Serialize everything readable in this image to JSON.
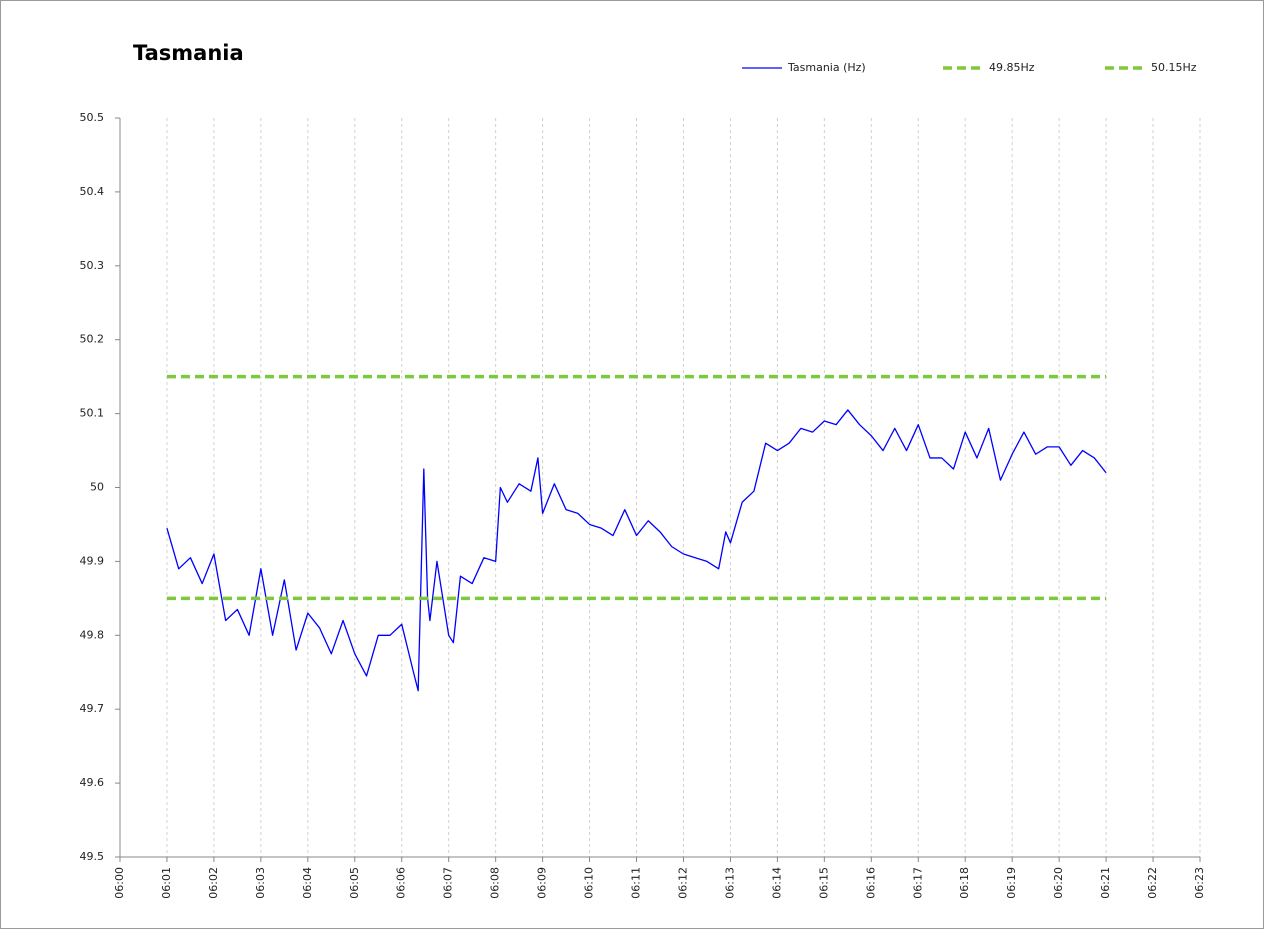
{
  "chart_data": {
    "type": "line",
    "title": "Tasmania",
    "xlim": [
      360,
      383
    ],
    "xticks": [
      {
        "value": 360,
        "label": "06:00"
      },
      {
        "value": 361,
        "label": "06:01"
      },
      {
        "value": 362,
        "label": "06:02"
      },
      {
        "value": 363,
        "label": "06:03"
      },
      {
        "value": 364,
        "label": "06:04"
      },
      {
        "value": 365,
        "label": "06:05"
      },
      {
        "value": 366,
        "label": "06:06"
      },
      {
        "value": 367,
        "label": "06:07"
      },
      {
        "value": 368,
        "label": "06:08"
      },
      {
        "value": 369,
        "label": "06:09"
      },
      {
        "value": 370,
        "label": "06:10"
      },
      {
        "value": 371,
        "label": "06:11"
      },
      {
        "value": 372,
        "label": "06:12"
      },
      {
        "value": 373,
        "label": "06:13"
      },
      {
        "value": 374,
        "label": "06:14"
      },
      {
        "value": 375,
        "label": "06:15"
      },
      {
        "value": 376,
        "label": "06:16"
      },
      {
        "value": 377,
        "label": "06:17"
      },
      {
        "value": 378,
        "label": "06:18"
      },
      {
        "value": 379,
        "label": "06:19"
      },
      {
        "value": 380,
        "label": "06:20"
      },
      {
        "value": 381,
        "label": "06:21"
      },
      {
        "value": 382,
        "label": "06:22"
      },
      {
        "value": 383,
        "label": "06:23"
      }
    ],
    "ylim": [
      49.5,
      50.5
    ],
    "yticks": [
      49.5,
      49.6,
      49.7,
      49.8,
      49.9,
      50,
      50.1,
      50.2,
      50.3,
      50.4,
      50.5
    ],
    "grid": true,
    "series": [
      {
        "name": "Tasmania (Hz)",
        "color": "#0000ff",
        "dashed": false,
        "x": [
          361,
          361.25,
          361.5,
          361.75,
          362,
          362.25,
          362.5,
          362.75,
          363,
          363.25,
          363.5,
          363.75,
          364,
          364.25,
          364.5,
          364.75,
          365,
          365.25,
          365.5,
          365.75,
          366,
          366.25,
          366.35,
          366.47,
          366.55,
          366.6,
          366.75,
          367,
          367.1,
          367.25,
          367.5,
          367.75,
          368,
          368.1,
          368.25,
          368.5,
          368.75,
          368.9,
          369,
          369.25,
          369.5,
          369.75,
          370,
          370.25,
          370.5,
          370.75,
          371,
          371.25,
          371.5,
          371.75,
          372,
          372.25,
          372.5,
          372.75,
          372.9,
          373,
          373.25,
          373.5,
          373.75,
          374,
          374.25,
          374.5,
          374.75,
          375,
          375.25,
          375.5,
          375.75,
          376,
          376.25,
          376.5,
          376.75,
          377,
          377.25,
          377.5,
          377.75,
          378,
          378.25,
          378.5,
          378.75,
          379,
          379.25,
          379.5,
          379.75,
          380,
          380.25,
          380.5,
          380.75,
          381
        ],
        "values": [
          49.945,
          49.89,
          49.905,
          49.87,
          49.91,
          49.82,
          49.835,
          49.8,
          49.89,
          49.8,
          49.875,
          49.78,
          49.83,
          49.81,
          49.775,
          49.82,
          49.775,
          49.745,
          49.8,
          49.8,
          49.815,
          49.75,
          49.725,
          50.025,
          49.85,
          49.82,
          49.9,
          49.8,
          49.79,
          49.88,
          49.87,
          49.905,
          49.9,
          50,
          49.98,
          50.005,
          49.995,
          50.04,
          49.965,
          50.005,
          49.97,
          49.965,
          49.95,
          49.945,
          49.935,
          49.97,
          49.935,
          49.955,
          49.94,
          49.92,
          49.91,
          49.905,
          49.9,
          49.89,
          49.94,
          49.925,
          49.98,
          49.995,
          50.06,
          50.05,
          50.06,
          50.08,
          50.075,
          50.09,
          50.085,
          50.105,
          50.085,
          50.07,
          50.05,
          50.08,
          50.05,
          50.085,
          50.04,
          50.04,
          50.025,
          50.075,
          50.04,
          50.08,
          50.01,
          50.045,
          50.075,
          50.045,
          50.055,
          50.055,
          50.03,
          50.05,
          50.04,
          50.02
        ]
      },
      {
        "name": "49.85Hz",
        "color": "#7ec83c",
        "dashed": true,
        "x": [
          361,
          381
        ],
        "values": [
          49.85,
          49.85
        ]
      },
      {
        "name": "50.15Hz",
        "color": "#7ec83c",
        "dashed": true,
        "x": [
          361,
          381
        ],
        "values": [
          50.15,
          50.15
        ]
      }
    ]
  }
}
